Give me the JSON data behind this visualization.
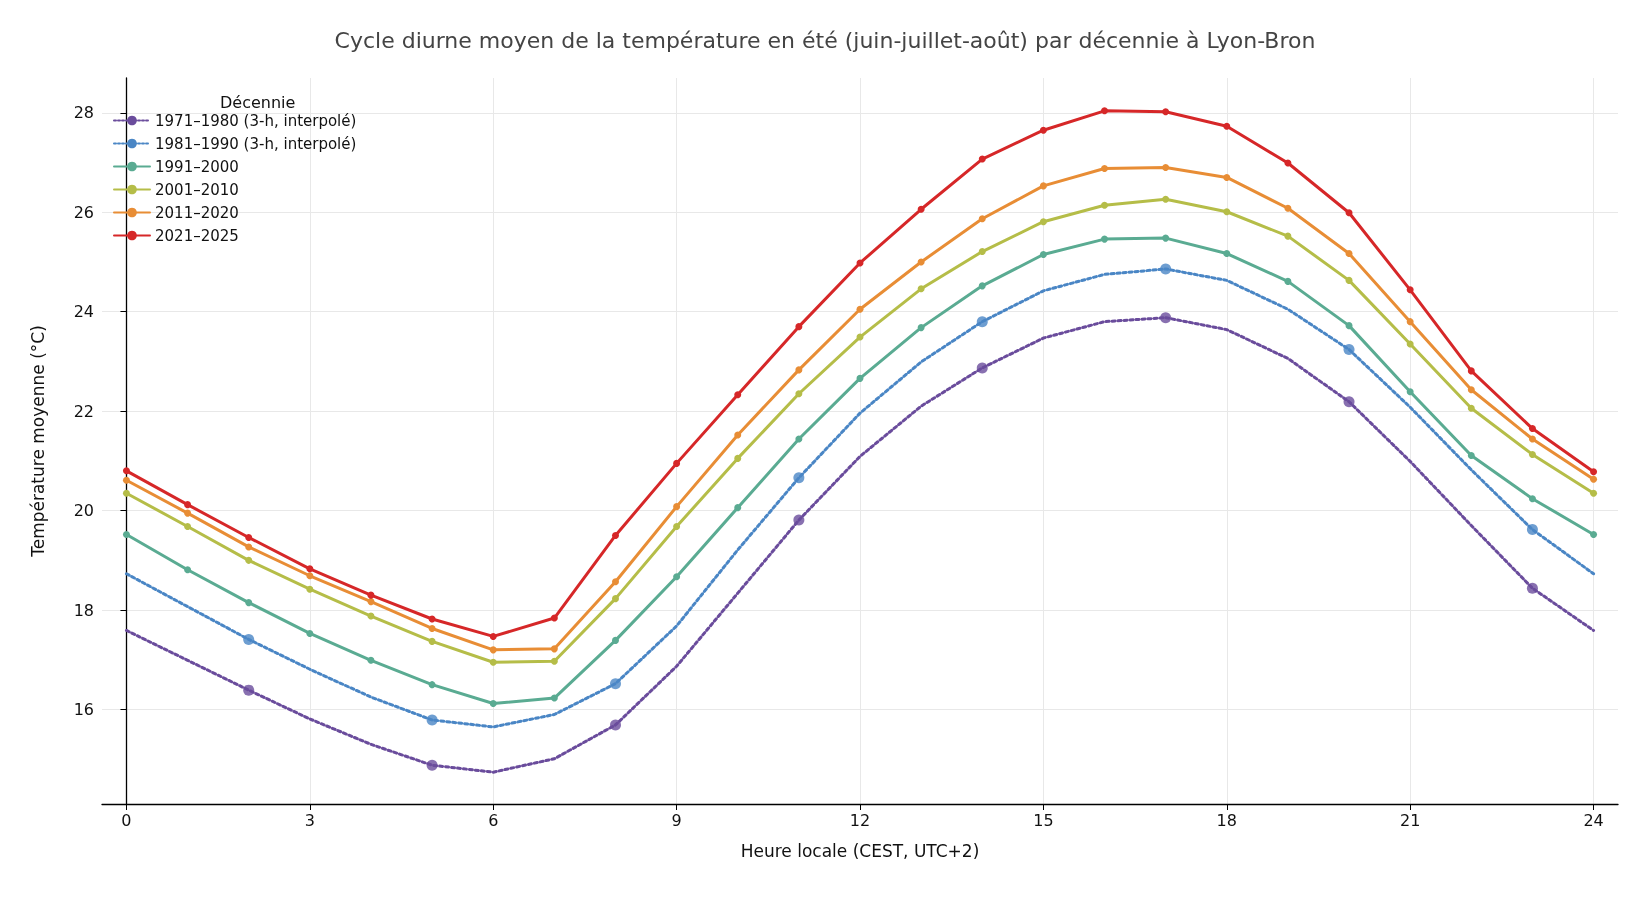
{
  "chart_data": {
    "type": "line",
    "title": "Cycle diurne moyen de la température en été (juin-juillet-août) par décennie à Lyon-Bron",
    "xlabel": "Heure locale (CEST, UTC+2)",
    "ylabel": "Température moyenne (°C)",
    "legend_title": "Décennie",
    "legend": "top left",
    "grid": true,
    "marker": "circle",
    "line_style": "solid",
    "x": [
      0,
      1,
      2,
      3,
      4,
      5,
      6,
      7,
      8,
      9,
      10,
      11,
      12,
      13,
      14,
      15,
      16,
      17,
      18,
      19,
      20,
      21,
      22,
      23,
      24
    ],
    "xlim": [
      -0.4,
      24.4
    ],
    "xticks": [
      0,
      3,
      6,
      9,
      12,
      15,
      18,
      21,
      24
    ],
    "ylim": [
      14.1,
      28.7
    ],
    "yticks": [
      16,
      18,
      20,
      22,
      24,
      26,
      28
    ],
    "series": [
      {
        "name": "1971–1980 (3-h, interpolé)",
        "color": "#6a4c9c",
        "line_style": "dotted",
        "marker": "none",
        "values": [
          17.59,
          16.99,
          16.39,
          15.81,
          15.3,
          14.88,
          14.74,
          15.01,
          15.69,
          16.87,
          18.34,
          19.81,
          21.09,
          22.1,
          22.87,
          23.47,
          23.8,
          23.88,
          23.64,
          23.06,
          22.19,
          20.99,
          19.7,
          18.44,
          17.59
        ]
      },
      {
        "type": "scatter",
        "color": "#6a4c9c",
        "x": [
          2,
          5,
          8,
          11,
          14,
          17,
          20,
          23
        ],
        "values": [
          16.39,
          14.88,
          15.69,
          19.81,
          22.87,
          23.88,
          22.19,
          18.44
        ]
      },
      {
        "name": "1981–1990 (3-h, interpolé)",
        "color": "#4a86c5",
        "line_style": "dotted",
        "marker": "none",
        "values": [
          18.73,
          18.07,
          17.41,
          16.81,
          16.25,
          15.79,
          15.65,
          15.9,
          16.52,
          17.68,
          19.21,
          20.66,
          21.96,
          22.99,
          23.8,
          24.42,
          24.75,
          24.86,
          24.63,
          24.05,
          23.24,
          22.08,
          20.82,
          19.62,
          18.73
        ]
      },
      {
        "type": "scatter",
        "color": "#4a86c5",
        "x": [
          2,
          5,
          8,
          11,
          14,
          17,
          20,
          23
        ],
        "values": [
          17.41,
          15.79,
          16.52,
          20.66,
          23.8,
          24.86,
          23.24,
          19.62
        ]
      },
      {
        "name": "1991–2000",
        "color": "#5aab92",
        "values": [
          19.52,
          18.81,
          18.15,
          17.53,
          16.99,
          16.5,
          16.12,
          16.23,
          17.39,
          18.67,
          20.06,
          21.44,
          22.66,
          23.68,
          24.52,
          25.15,
          25.46,
          25.48,
          25.17,
          24.61,
          23.72,
          22.39,
          21.11,
          20.24,
          19.52
        ]
      },
      {
        "name": "2001–2010",
        "color": "#b5bd48",
        "values": [
          20.35,
          19.68,
          19.0,
          18.42,
          17.88,
          17.37,
          16.95,
          16.97,
          18.23,
          19.68,
          21.05,
          22.35,
          23.49,
          24.46,
          25.21,
          25.81,
          26.14,
          26.26,
          26.01,
          25.52,
          24.63,
          23.35,
          22.06,
          21.13,
          20.35
        ]
      },
      {
        "name": "2011–2020",
        "color": "#e88d35",
        "values": [
          20.61,
          19.95,
          19.27,
          18.69,
          18.17,
          17.63,
          17.2,
          17.22,
          18.57,
          20.08,
          21.52,
          22.83,
          24.05,
          25.0,
          25.87,
          26.53,
          26.88,
          26.9,
          26.7,
          26.08,
          25.17,
          23.8,
          22.43,
          21.44,
          20.63
        ]
      },
      {
        "name": "2021–2025",
        "color": "#d62728",
        "values": [
          20.8,
          20.12,
          19.46,
          18.83,
          18.3,
          17.82,
          17.47,
          17.84,
          19.5,
          20.95,
          22.33,
          23.7,
          24.98,
          26.06,
          27.07,
          27.65,
          28.04,
          28.02,
          27.73,
          26.99,
          25.99,
          24.44,
          22.81,
          21.65,
          20.78
        ]
      }
    ]
  }
}
